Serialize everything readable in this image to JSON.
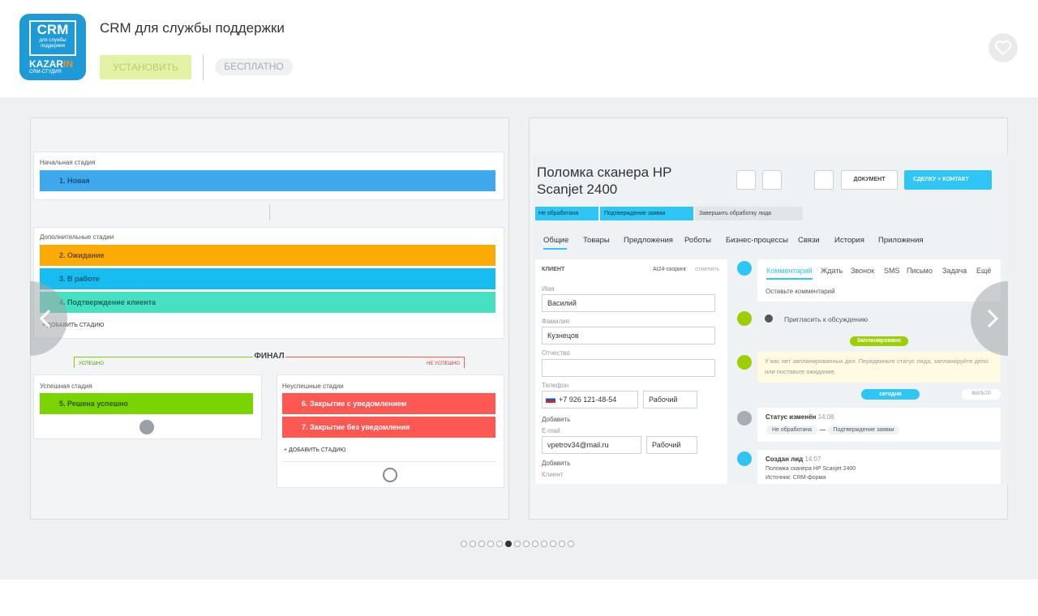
{
  "app": {
    "logo": {
      "title": "CRM",
      "subtitle": "для службы поддержки",
      "brand": "KAZAR",
      "brand_accent": "IN",
      "tagline": "CRM-СТУДИЯ"
    },
    "name": "CRM для службы поддержки",
    "install": "УСТАНОВИТЬ",
    "price": "БЕСПЛАТНО"
  },
  "stages_slide": {
    "initial_heading": "Начальная стадия",
    "initial": [
      "1. Новая"
    ],
    "extra_heading": "Дополнительные стадии",
    "extra": [
      "2. Ожидание",
      "3. В работе",
      "4. Подтверждение клиента"
    ],
    "add": "+ ДОБАВИТЬ СТАДИЮ",
    "final": "ФИНАЛ",
    "success_tag": "УСПЕШНО",
    "fail_tag": "НЕ УСПЕШНО",
    "success_heading": "Успешная стадия",
    "success": [
      "5. Решена успешно"
    ],
    "fail_heading": "Неуспешные стадии",
    "fail": [
      "6. Закрытие с уведомлением",
      "7. Закрытие без уведомления"
    ],
    "fail_add": "+ ДОБАВИТЬ СТАДИЮ"
  },
  "lead_slide": {
    "title": "Поломка сканера HP Scanjet 2400",
    "document": "ДОКУМЕНТ",
    "convert": "СДЕЛКУ + КОНТАКТ",
    "pipeline": [
      "Не обработана",
      "Подтверждение заявки",
      "Завершить обработку лида"
    ],
    "tabs": [
      "Общие",
      "Товары",
      "Предложения",
      "Роботы",
      "Бизнес-процессы",
      "Связи",
      "История",
      "Приложения"
    ],
    "client": {
      "heading": "КЛИЕНТ",
      "scoring": "AI24-скоринг",
      "cancel": "отменить",
      "first_name_label": "Имя",
      "first_name": "Василий",
      "last_name_label": "Фамилия",
      "last_name": "Кузнецов",
      "middle_name_label": "Отчество",
      "phone_label": "Телефон",
      "phone": "+7 926 121-48-54",
      "phone_type": "Рабочий",
      "add_phone": "Добавить",
      "email_label": "E-mail",
      "email": "vpetrov34@mail.ru",
      "email_type": "Рабочий",
      "add_email": "Добавить",
      "client_label": "Клиент"
    },
    "timeline": {
      "tabs": [
        "Комментарий",
        "Ждать",
        "Звонок",
        "SMS",
        "Письмо",
        "Задача",
        "Ещё"
      ],
      "placeholder": "Оставьте комментарий",
      "invite": "Пригласить к обсуждению",
      "planned": "Запланировано",
      "notice": "У вас нет запланированных дел. Передвиньте статус лида, запланируйте дело или поставьте ожидание.",
      "today": "сегодня",
      "filter": "ФИЛЬТР",
      "items": [
        {
          "title": "Статус изменён",
          "time": "14:08",
          "from": "Не обработана",
          "to": "Подтверждение заявки"
        },
        {
          "title": "Создан лид",
          "time": "14:07",
          "lines": [
            "Поломка сканера HP Scanjet 2400",
            "Источник: CRM-форма"
          ]
        }
      ]
    }
  }
}
